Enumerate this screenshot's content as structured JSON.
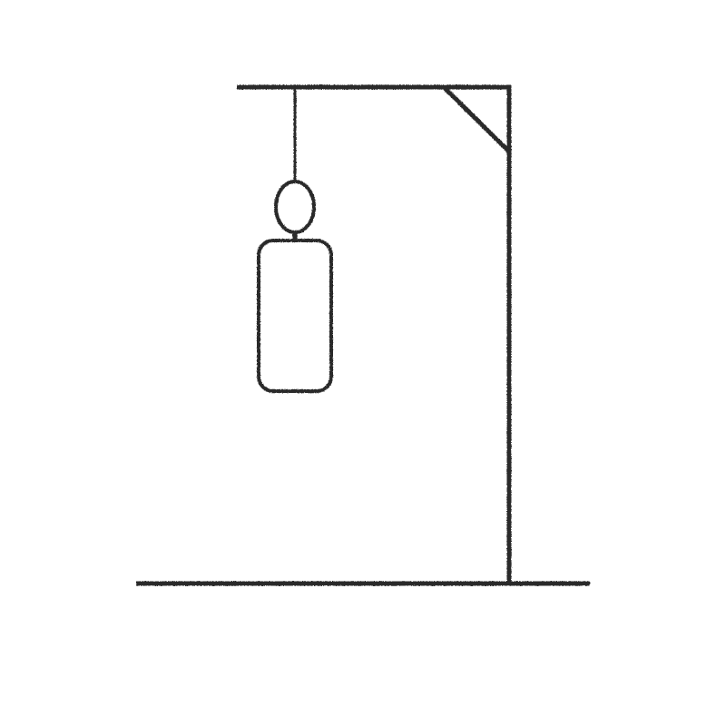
{
  "game": {
    "name": "hangman",
    "wrong_guesses": 2,
    "parts_drawn": [
      "head",
      "body"
    ],
    "colors": {
      "ink": "#2b2b2b",
      "background": "#ffffff"
    }
  }
}
